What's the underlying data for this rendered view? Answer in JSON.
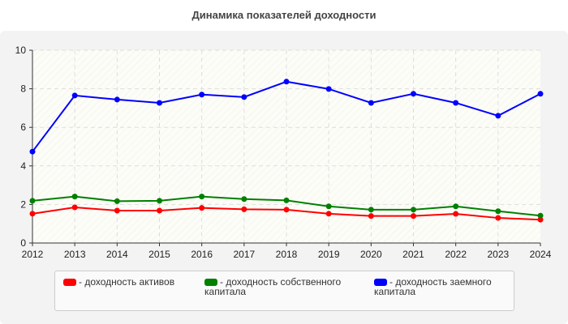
{
  "chart_data": {
    "type": "line",
    "title": "Динамика показателей доходности",
    "categories": [
      "2012",
      "2013",
      "2014",
      "2015",
      "2016",
      "2017",
      "2018",
      "2019",
      "2020",
      "2021",
      "2022",
      "2023",
      "2024"
    ],
    "ylim": [
      0,
      10
    ],
    "yticks": [
      0,
      2,
      4,
      6,
      8,
      10
    ],
    "grid": true,
    "legend_position": "bottom",
    "series": [
      {
        "name": "- доходность активов",
        "color": "#ff0000",
        "values": [
          1.52,
          1.85,
          1.68,
          1.68,
          1.82,
          1.75,
          1.73,
          1.52,
          1.4,
          1.4,
          1.51,
          1.3,
          1.21
        ]
      },
      {
        "name": "- доходность собственного капитала",
        "color": "#008000",
        "values": [
          2.19,
          2.41,
          2.17,
          2.19,
          2.41,
          2.28,
          2.21,
          1.9,
          1.73,
          1.73,
          1.9,
          1.65,
          1.42
        ]
      },
      {
        "name": "- доходность заемного капитала",
        "color": "#0000ff",
        "values": [
          4.74,
          7.65,
          7.44,
          7.27,
          7.7,
          7.57,
          8.37,
          7.99,
          7.27,
          7.74,
          7.27,
          6.6,
          7.74
        ]
      }
    ]
  }
}
